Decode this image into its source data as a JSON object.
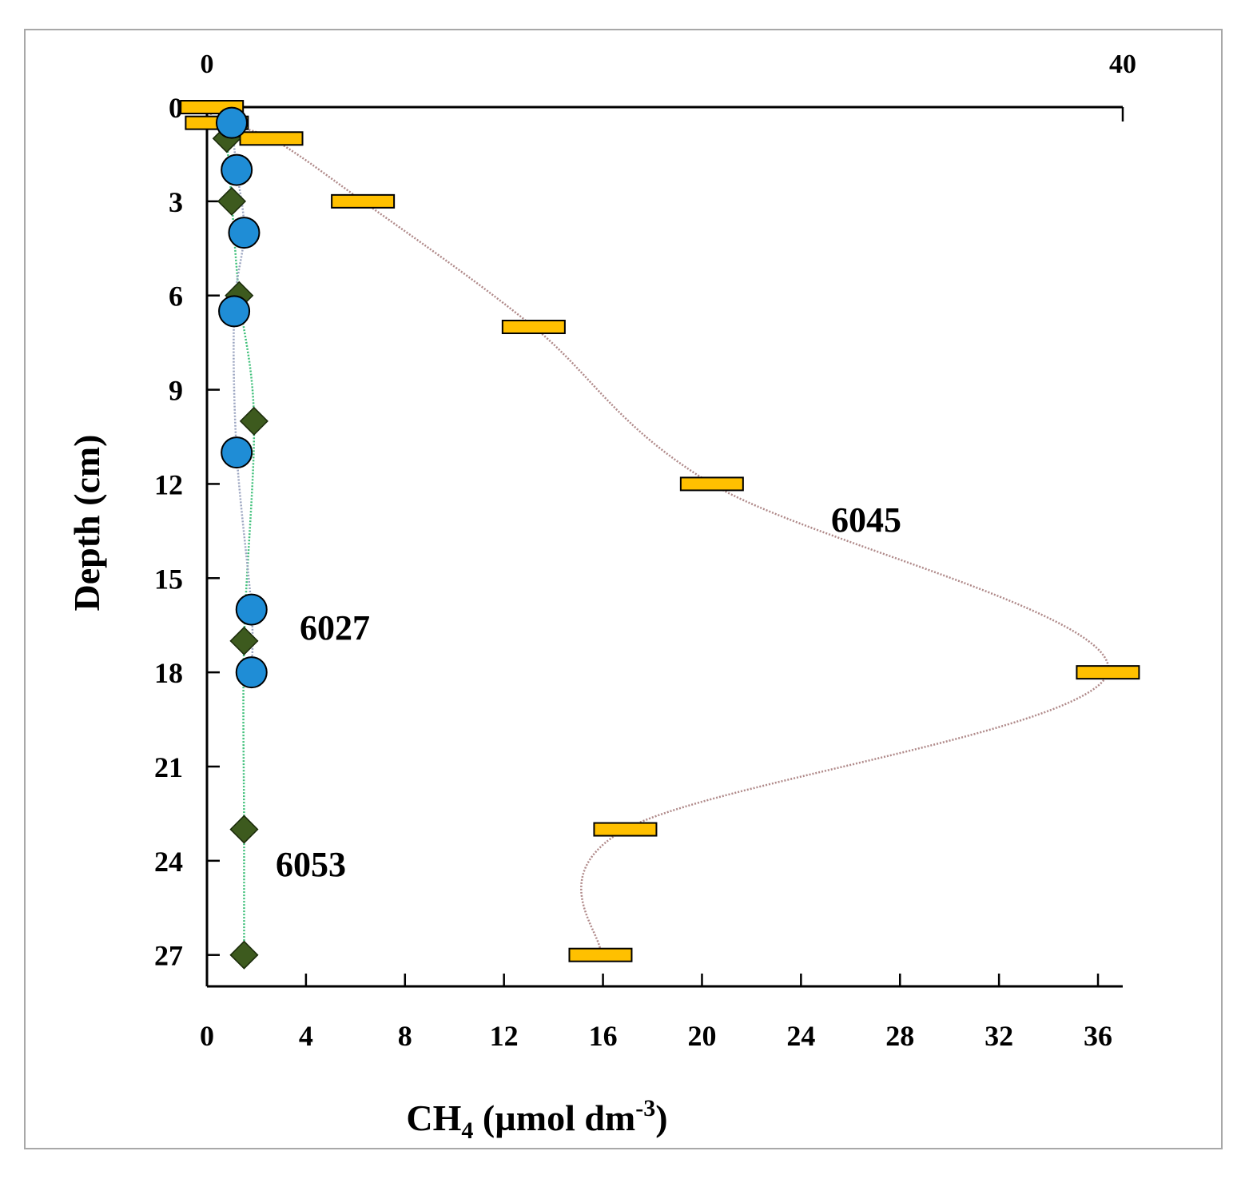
{
  "chart_data": {
    "type": "scatter",
    "xlabel": "CH",
    "xlabel_sub": "4",
    "xlabel_unit": " (µmol dm",
    "xlabel_sup": "-3",
    "xlabel_close": ")",
    "ylabel": "Depth (cm)",
    "xlim": [
      0,
      37
    ],
    "ylim": [
      28,
      0
    ],
    "x_ticks": [
      0,
      4,
      8,
      12,
      16,
      20,
      24,
      28,
      32,
      36
    ],
    "y_ticks": [
      0,
      3,
      6,
      9,
      12,
      15,
      18,
      21,
      24,
      27
    ],
    "top_axis": {
      "ticks": [
        0,
        40
      ],
      "tick_labels": [
        "0",
        "40"
      ]
    },
    "grid": false,
    "series": [
      {
        "name": "6045",
        "marker": "bar",
        "color": "#ffc000",
        "line_color": "#b08a8a",
        "points": [
          {
            "x": 0.2,
            "y": 0
          },
          {
            "x": 0.4,
            "y": 0.5
          },
          {
            "x": 2.6,
            "y": 1.0
          },
          {
            "x": 6.3,
            "y": 3.0
          },
          {
            "x": 13.2,
            "y": 7.0
          },
          {
            "x": 20.4,
            "y": 12.0
          },
          {
            "x": 36.4,
            "y": 18.0
          },
          {
            "x": 16.9,
            "y": 23.0
          },
          {
            "x": 15.9,
            "y": 27.0
          }
        ]
      },
      {
        "name": "6027",
        "marker": "circle",
        "color": "#1f8dd6",
        "line_color": "#9aa4c0",
        "points": [
          {
            "x": 1.0,
            "y": 0.5
          },
          {
            "x": 1.2,
            "y": 2.0
          },
          {
            "x": 1.5,
            "y": 4.0
          },
          {
            "x": 1.1,
            "y": 6.5
          },
          {
            "x": 1.2,
            "y": 11.0
          },
          {
            "x": 1.8,
            "y": 16.0
          },
          {
            "x": 1.8,
            "y": 18.0
          }
        ]
      },
      {
        "name": "6053",
        "marker": "diamond",
        "color": "#3d5a1e",
        "line_color": "#3fc07a",
        "points": [
          {
            "x": 0.8,
            "y": 1.0
          },
          {
            "x": 1.0,
            "y": 3.0
          },
          {
            "x": 1.3,
            "y": 6.0
          },
          {
            "x": 1.9,
            "y": 10.0
          },
          {
            "x": 1.5,
            "y": 17.0
          },
          {
            "x": 1.5,
            "y": 23.0
          },
          {
            "x": 1.5,
            "y": 27.0
          }
        ]
      }
    ]
  }
}
